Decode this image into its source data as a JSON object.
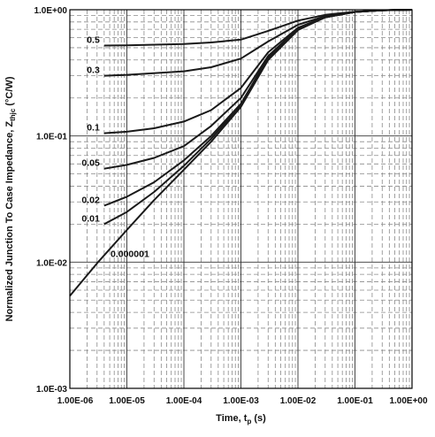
{
  "chart_data": {
    "type": "line",
    "title": "",
    "xlabel": "Time, t",
    "xlabel_sub": "p",
    "xlabel_unit": " (s)",
    "ylabel": "Normalized Junction To Case Impedance, Z",
    "ylabel_sub": "thjc",
    "ylabel_unit": " (°C/W)",
    "x_scale": "log",
    "y_scale": "log",
    "xlim": [
      1e-06,
      1
    ],
    "ylim": [
      0.001,
      1
    ],
    "grid": true,
    "x_ticks": [
      {
        "value": 1e-06,
        "label": "1.00E-06"
      },
      {
        "value": 1e-05,
        "label": "1.00E-05"
      },
      {
        "value": 0.0001,
        "label": "1.00E-04"
      },
      {
        "value": 0.001,
        "label": "1.00E-03"
      },
      {
        "value": 0.01,
        "label": "1.00E-02"
      },
      {
        "value": 0.1,
        "label": "1.00E-01"
      },
      {
        "value": 1,
        "label": "1.00E+00"
      }
    ],
    "y_ticks": [
      {
        "value": 1,
        "label": "1.0E+00"
      },
      {
        "value": 0.1,
        "label": "1.0E-01"
      },
      {
        "value": 0.01,
        "label": "1.0E-02"
      },
      {
        "value": 0.001,
        "label": "1.0E-03"
      }
    ],
    "series": [
      {
        "name": "0.5",
        "x": [
          4e-06,
          1e-05,
          0.0001,
          0.0003,
          0.001,
          0.003,
          0.01,
          0.03,
          0.1,
          0.3,
          1
        ],
        "y": [
          0.52,
          0.523,
          0.535,
          0.55,
          0.58,
          0.68,
          0.82,
          0.91,
          0.965,
          0.99,
          1.0
        ]
      },
      {
        "name": "0.3",
        "x": [
          4e-06,
          1e-05,
          0.0001,
          0.0003,
          0.001,
          0.003,
          0.01,
          0.03,
          0.1,
          0.3,
          1
        ],
        "y": [
          0.3,
          0.305,
          0.325,
          0.35,
          0.41,
          0.56,
          0.76,
          0.89,
          0.96,
          0.99,
          1.0
        ]
      },
      {
        "name": "0.1",
        "x": [
          4e-06,
          1e-05,
          3e-05,
          0.0001,
          0.0003,
          0.001,
          0.003,
          0.01,
          0.03,
          0.1,
          0.3,
          1
        ],
        "y": [
          0.105,
          0.108,
          0.115,
          0.13,
          0.16,
          0.24,
          0.46,
          0.72,
          0.88,
          0.96,
          0.99,
          1.0
        ]
      },
      {
        "name": "0.05",
        "x": [
          4e-06,
          1e-05,
          3e-05,
          0.0001,
          0.0003,
          0.001,
          0.003,
          0.01,
          0.03,
          0.1,
          0.3,
          1
        ],
        "y": [
          0.055,
          0.059,
          0.067,
          0.083,
          0.12,
          0.2,
          0.43,
          0.71,
          0.88,
          0.96,
          0.99,
          1.0
        ]
      },
      {
        "name": "0.02",
        "x": [
          4e-06,
          1e-05,
          3e-05,
          0.0001,
          0.0003,
          0.001,
          0.003,
          0.01,
          0.03,
          0.1,
          0.3,
          1
        ],
        "y": [
          0.028,
          0.033,
          0.043,
          0.064,
          0.1,
          0.18,
          0.42,
          0.7,
          0.87,
          0.96,
          0.99,
          1.0
        ]
      },
      {
        "name": "0.01",
        "x": [
          4e-06,
          1e-05,
          3e-05,
          0.0001,
          0.0003,
          0.001,
          0.003,
          0.01,
          0.03,
          0.1,
          0.3,
          1
        ],
        "y": [
          0.02,
          0.025,
          0.036,
          0.058,
          0.095,
          0.175,
          0.41,
          0.7,
          0.87,
          0.96,
          0.99,
          1.0
        ]
      },
      {
        "name": "0.000001",
        "x": [
          1e-06,
          3e-06,
          1e-05,
          3e-05,
          0.0001,
          0.0003,
          0.001,
          0.003,
          0.01,
          0.03,
          0.1,
          0.3,
          1
        ],
        "y": [
          0.0054,
          0.0098,
          0.018,
          0.031,
          0.054,
          0.09,
          0.17,
          0.4,
          0.69,
          0.87,
          0.96,
          0.99,
          1.0
        ]
      }
    ]
  }
}
